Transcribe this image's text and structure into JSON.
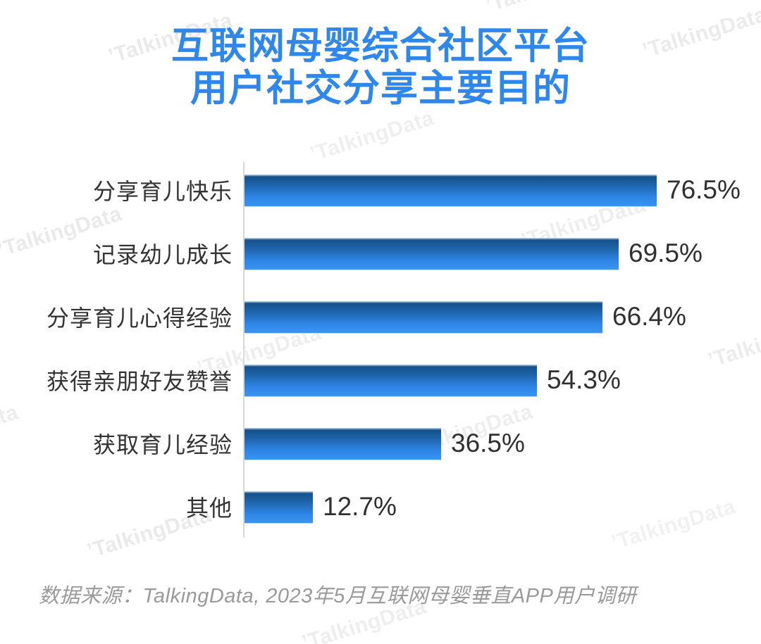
{
  "title": {
    "line1": "互联网母婴综合社区平台",
    "line2": "用户社交分享主要目的"
  },
  "chart_data": {
    "type": "bar",
    "orientation": "horizontal",
    "title": "互联网母婴综合社区平台 用户社交分享主要目的",
    "categories": [
      "分享育儿快乐",
      "记录幼儿成长",
      "分享育儿心得经验",
      "获得亲朋好友赞誉",
      "获取育儿经验",
      "其他"
    ],
    "values": [
      76.5,
      69.5,
      66.4,
      54.3,
      36.5,
      12.7
    ],
    "value_labels": [
      "76.5%",
      "69.5%",
      "66.4%",
      "54.3%",
      "36.5%",
      "12.7%"
    ],
    "xlabel": "",
    "ylabel": "",
    "xlim": [
      0,
      100
    ],
    "grid": false,
    "legend": false,
    "bar_color_top": "#15518c",
    "bar_color_bottom": "#3a93ef"
  },
  "footer": {
    "source": "数据来源：TalkingData, 2023年5月互联网母婴垂直APP用户调研"
  },
  "watermark": {
    "text": "’TalkingData",
    "color": "#e9e9e9"
  },
  "colors": {
    "title": "#2e87ed",
    "category_label": "#333333",
    "value_label": "#303030",
    "axis_line": "#d9d9d9",
    "background": "#ffffff"
  }
}
